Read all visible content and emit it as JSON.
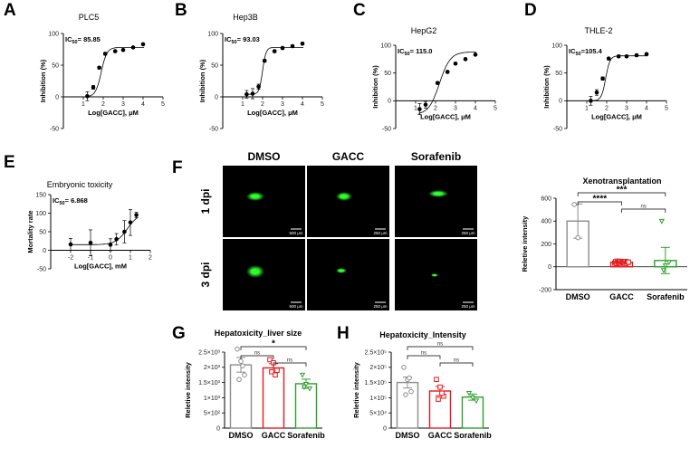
{
  "chart_data": [
    {
      "panel": "A",
      "type": "scatter",
      "title": "PLC5",
      "ic50_prefix": "IC",
      "ic50_sub": "50",
      "ic50_value": "= 85.85",
      "xlabel": "Log[GACC], μM",
      "ylabel": "Inhibition (%)",
      "xlim": [
        0,
        5
      ],
      "ylim": [
        -50,
        100
      ],
      "xticks": [
        "1",
        "2",
        "3",
        "4",
        "5"
      ],
      "yticks": [
        "-50",
        "0",
        "50",
        "100"
      ],
      "x": [
        1.2,
        1.5,
        1.8,
        2.1,
        2.6,
        3.0,
        3.5,
        4.0
      ],
      "y": [
        1,
        15,
        46,
        68,
        72,
        74,
        78,
        83
      ],
      "err": [
        7,
        3,
        2,
        2,
        1.5,
        1.5,
        1.5,
        1.5
      ],
      "fit": {
        "bottom": 0,
        "top": 78,
        "logec50": 1.9,
        "hill": 3
      }
    },
    {
      "panel": "B",
      "type": "scatter",
      "title": "Hep3B",
      "ic50_prefix": "IC",
      "ic50_sub": "50",
      "ic50_value": "= 93.03",
      "xlabel": "Log[GACC], μM",
      "ylabel": "Inhibition (%)",
      "xlim": [
        0,
        5
      ],
      "ylim": [
        -50,
        100
      ],
      "xticks": [
        "1",
        "2",
        "3",
        "4",
        "5"
      ],
      "yticks": [
        "-50",
        "0",
        "50",
        "100"
      ],
      "x": [
        1.2,
        1.5,
        1.8,
        2.1,
        2.6,
        3.0,
        3.5,
        4.0
      ],
      "y": [
        4,
        5,
        16,
        57,
        72,
        77,
        80,
        84
      ],
      "err": [
        6,
        8,
        4,
        2,
        2,
        2,
        2,
        2
      ],
      "fit": {
        "bottom": 4,
        "top": 78,
        "logec50": 2.0,
        "hill": 5
      }
    },
    {
      "panel": "C",
      "type": "scatter",
      "title": "HepG2",
      "ic50_prefix": "IC",
      "ic50_sub": "50",
      "ic50_value": "= 115.0",
      "xlabel": "Log[GACC], μM",
      "ylabel": "Inhibition (%)",
      "xlim": [
        0,
        5
      ],
      "ylim": [
        -50,
        100
      ],
      "xticks": [
        "1",
        "2",
        "3",
        "4",
        "5"
      ],
      "yticks": [
        "-50",
        "0",
        "50",
        "100"
      ],
      "x": [
        1.2,
        1.5,
        2.1,
        2.6,
        3.0,
        3.5,
        4.0
      ],
      "y": [
        -15,
        -7,
        32,
        52,
        67,
        75,
        83
      ],
      "err": [
        10,
        6,
        2,
        2,
        2,
        2,
        2
      ],
      "fit": {
        "bottom": -25,
        "top": 88,
        "logec50": 2.2,
        "hill": 1.6
      }
    },
    {
      "panel": "D",
      "type": "scatter",
      "title": "THLE-2",
      "ic50_prefix": "IC",
      "ic50_sub": "50",
      "ic50_value": "=105.4",
      "xlabel": "Log[GACC], μM",
      "ylabel": "Inhibition (%)",
      "xlim": [
        0,
        5
      ],
      "ylim": [
        -50,
        100
      ],
      "xticks": [
        "1",
        "2",
        "3",
        "4",
        "5"
      ],
      "yticks": [
        "-50",
        "0",
        "50",
        "100"
      ],
      "x": [
        1.2,
        1.5,
        1.8,
        2.1,
        2.6,
        3.0,
        3.5,
        4.0
      ],
      "y": [
        0,
        15,
        40,
        76,
        80,
        80,
        82,
        84
      ],
      "err": [
        8,
        5,
        3,
        2,
        2,
        2,
        2,
        2
      ],
      "fit": {
        "bottom": 0,
        "top": 81,
        "logec50": 1.95,
        "hill": 4
      }
    },
    {
      "panel": "E",
      "type": "scatter",
      "title": "Embryonic toxicity",
      "ic50_prefix": "IC",
      "ic50_sub": "50",
      "ic50_value": "= 6.868",
      "xlabel": "Log[GACC], mM",
      "ylabel": "Mortality rate",
      "xlim": [
        -3,
        2
      ],
      "ylim": [
        -50,
        150
      ],
      "xticks": [
        "-2",
        "-1",
        "0",
        "1",
        "2"
      ],
      "yticks": [
        "-50",
        "0",
        "50",
        "100",
        "150"
      ],
      "x": [
        -2,
        -1,
        0,
        0.3,
        0.7,
        1.0,
        1.3
      ],
      "y": [
        16,
        20,
        15,
        30,
        50,
        75,
        95
      ],
      "err": [
        16,
        35,
        16,
        15,
        30,
        35,
        7
      ],
      "fit": {
        "bottom": 15,
        "top": 100,
        "logec50": 0.84,
        "hill": 1.5
      }
    },
    {
      "panel": "F",
      "type": "bar",
      "title": "Xenotransplantation",
      "ylabel": "Reletive intensity",
      "categories": [
        "DMSO",
        "GACC",
        "Sorafenib"
      ],
      "values": [
        400,
        40,
        55
      ],
      "err": [
        150,
        8,
        115
      ],
      "colors": [
        "#8c8c8c",
        "#e41a1c",
        "#2ca02c"
      ],
      "points": [
        [
          545,
          255
        ],
        [
          32,
          45,
          28,
          50,
          38,
          42,
          35,
          48,
          30,
          44,
          36,
          40,
          33,
          47,
          29,
          43,
          39,
          41
        ],
        [
          400,
          10,
          40,
          -30
        ]
      ],
      "markers": [
        "circle",
        "square",
        "triangle-down"
      ],
      "ylim": [
        -200,
        600
      ],
      "yticks": [
        "-200",
        "0",
        "200",
        "400",
        "600"
      ],
      "significance": [
        {
          "pair": [
            0,
            1
          ],
          "label": "****"
        },
        {
          "pair": [
            0,
            2
          ],
          "label": "***"
        },
        {
          "pair": [
            1,
            2
          ],
          "label": "ns"
        }
      ]
    },
    {
      "panel": "G",
      "type": "bar",
      "title": "Hepatoxicity_liver size",
      "ylabel": "Reletive intensity",
      "categories": [
        "DMSO",
        "GACC",
        "Sorafenib"
      ],
      "values": [
        2080,
        1980,
        1460
      ],
      "err": [
        240,
        140,
        150
      ],
      "colors": [
        "#8c8c8c",
        "#e41a1c",
        "#2ca02c"
      ],
      "points": [
        [
          2600,
          2200,
          1750,
          1600,
          2050
        ],
        [
          2250,
          2150,
          1900,
          1850,
          1750
        ],
        [
          1750,
          1450,
          1300,
          1350
        ]
      ],
      "markers": [
        "circle",
        "square",
        "triangle-down"
      ],
      "ylim": [
        0,
        2500
      ],
      "yticks": [
        "0",
        "5×10²",
        "1×10³",
        "1.5×10³",
        "2×10³",
        "2.5×10³"
      ],
      "significance": [
        {
          "pair": [
            0,
            1
          ],
          "label": "ns"
        },
        {
          "pair": [
            0,
            2
          ],
          "label": "*"
        },
        {
          "pair": [
            1,
            2
          ],
          "label": "ns"
        }
      ]
    },
    {
      "panel": "H",
      "type": "bar",
      "title": "Hepatoxicity_Intensity",
      "ylabel": "Reletive intensity",
      "categories": [
        "DMSO",
        "GACC",
        "Sorafenib"
      ],
      "values": [
        150000,
        122000,
        102000
      ],
      "err": [
        18000,
        15000,
        10000
      ],
      "colors": [
        "#8c8c8c",
        "#e41a1c",
        "#2ca02c"
      ],
      "points": [
        [
          200000,
          160000,
          120000,
          110000,
          165000
        ],
        [
          160000,
          135000,
          105000,
          95000,
          115000
        ],
        [
          115000,
          100000,
          90000
        ]
      ],
      "markers": [
        "circle",
        "square",
        "triangle-down"
      ],
      "ylim": [
        0,
        250000
      ],
      "yticks": [
        "0",
        "5×10⁴",
        "1×10⁵",
        "1.5×10⁵",
        "2×10⁵",
        "2.5×10⁵"
      ],
      "significance": [
        {
          "pair": [
            0,
            1
          ],
          "label": "ns"
        },
        {
          "pair": [
            0,
            2
          ],
          "label": "ns"
        },
        {
          "pair": [
            1,
            2
          ],
          "label": "ns"
        }
      ]
    }
  ],
  "image_panel": {
    "letter": "F",
    "columns": [
      "DMSO",
      "GACC",
      "Sorafenib"
    ],
    "rows": [
      "1 dpi",
      "3 dpi"
    ],
    "scale_bars": [
      [
        "500 μm",
        "250 μm",
        "250 μm"
      ],
      [
        "500 μm",
        "250 μm",
        "250 μm"
      ]
    ],
    "glow_color": "#2aff2a"
  }
}
